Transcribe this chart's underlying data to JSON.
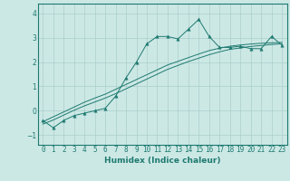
{
  "xlabel": "Humidex (Indice chaleur)",
  "ylabel": "",
  "x_values": [
    0,
    1,
    2,
    3,
    4,
    5,
    6,
    7,
    8,
    9,
    10,
    11,
    12,
    13,
    14,
    15,
    16,
    17,
    18,
    19,
    20,
    21,
    22,
    23
  ],
  "y_main": [
    -0.4,
    -0.7,
    -0.4,
    -0.2,
    -0.1,
    0.0,
    0.1,
    0.6,
    1.35,
    2.0,
    2.75,
    3.05,
    3.05,
    2.95,
    3.35,
    3.75,
    3.05,
    2.6,
    2.6,
    2.65,
    2.55,
    2.55,
    3.05,
    2.7
  ],
  "y_linear1": [
    -0.45,
    -0.25,
    -0.05,
    0.15,
    0.35,
    0.52,
    0.68,
    0.88,
    1.08,
    1.28,
    1.48,
    1.68,
    1.88,
    2.03,
    2.18,
    2.33,
    2.47,
    2.57,
    2.65,
    2.7,
    2.74,
    2.77,
    2.79,
    2.81
  ],
  "y_linear2": [
    -0.55,
    -0.38,
    -0.18,
    0.02,
    0.2,
    0.36,
    0.52,
    0.7,
    0.9,
    1.1,
    1.3,
    1.5,
    1.7,
    1.86,
    2.02,
    2.16,
    2.3,
    2.42,
    2.52,
    2.58,
    2.64,
    2.68,
    2.72,
    2.75
  ],
  "ylim": [
    -1.4,
    4.4
  ],
  "xlim": [
    -0.5,
    23.5
  ],
  "bg_color": "#cce8e5",
  "grid_color": "#aacfcc",
  "line_color": "#1e7a70",
  "marker": "^",
  "marker_size": 2.5,
  "tick_fontsize": 5.5,
  "xlabel_fontsize": 6.5
}
